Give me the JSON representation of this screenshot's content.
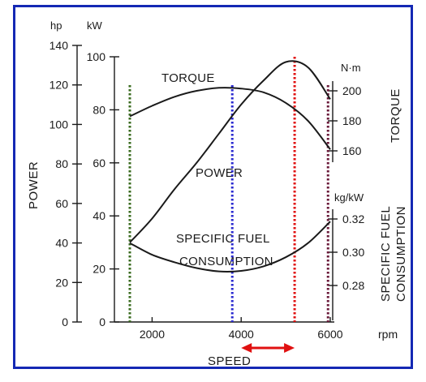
{
  "chart_data": {
    "type": "line",
    "x_axis": {
      "label": "SPEED",
      "unit": "rpm",
      "ticks": [
        2000,
        4000,
        6000
      ],
      "range": [
        1000,
        6600
      ]
    },
    "left_axes": [
      {
        "title": "POWER",
        "unit": "hp",
        "ticks": [
          0,
          20,
          40,
          60,
          80,
          100,
          120,
          140
        ]
      },
      {
        "unit": "kW",
        "ticks": [
          0,
          20,
          40,
          60,
          80,
          100
        ]
      }
    ],
    "right_axes": [
      {
        "title": "TORQUE",
        "unit": "N·m",
        "ticks": [
          160,
          180,
          200
        ]
      },
      {
        "title_lines": [
          "SPECIFIC FUEL",
          "CONSUMPTION"
        ],
        "unit": "kg/kW",
        "ticks": [
          "0.28",
          "0.30",
          "0.32"
        ]
      }
    ],
    "series": [
      {
        "name": "TORQUE",
        "axis": "N·m",
        "x": [
          1500,
          2000,
          2500,
          3000,
          3500,
          4000,
          4500,
          5000,
          5500,
          6000
        ],
        "y": [
          183,
          190,
          196,
          200,
          202,
          201.5,
          199,
          192,
          180,
          161
        ]
      },
      {
        "name": "POWER",
        "axis": "kW",
        "x": [
          1500,
          2000,
          2500,
          3000,
          3500,
          4000,
          4500,
          5000,
          5500,
          6000
        ],
        "y": [
          30,
          39,
          50,
          60,
          71,
          82,
          91,
          98,
          96,
          84
        ]
      },
      {
        "name_lines": [
          "SPECIFIC  FUEL",
          "CONSUMPTION"
        ],
        "axis": "kg/kW",
        "x": [
          1500,
          2000,
          2500,
          3000,
          3500,
          4000,
          4500,
          5000,
          5500,
          6000
        ],
        "y": [
          0.3055,
          0.2985,
          0.294,
          0.2905,
          0.2885,
          0.2888,
          0.2915,
          0.297,
          0.3055,
          0.3185
        ]
      }
    ],
    "markers": [
      {
        "x": 1500,
        "color": "#3a6b1f"
      },
      {
        "x": 3800,
        "color": "#2a2ad0"
      },
      {
        "x": 5200,
        "color": "#e01010"
      },
      {
        "x": 5950,
        "color": "#6a1a3a"
      }
    ],
    "range_arrow": {
      "from": 4000,
      "to": 5200,
      "color": "#e01010"
    },
    "grid": false
  }
}
